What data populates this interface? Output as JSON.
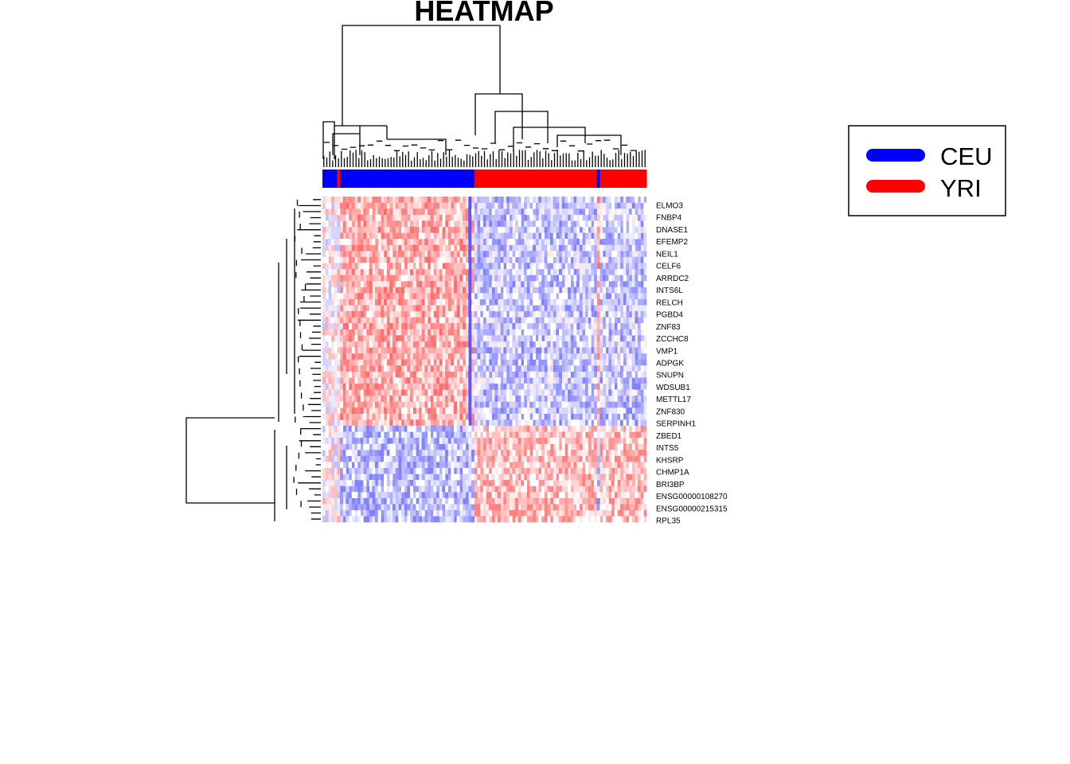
{
  "chart_data": {
    "type": "heatmap",
    "title": "HEATMAP",
    "color_scale": {
      "low": "#0000FF",
      "mid": "#FFFFFF",
      "high": "#FF0000"
    },
    "group_colors": {
      "CEU": "#0000FF",
      "YRI": "#FF0000"
    },
    "legend": {
      "position": "right",
      "entries": [
        {
          "label": "CEU",
          "color": "#0000FF"
        },
        {
          "label": "YRI",
          "color": "#FF0000"
        }
      ]
    },
    "column_groups": [
      {
        "group": "CEU",
        "count": 5
      },
      {
        "group": "YRI",
        "count": 1
      },
      {
        "group": "CEU",
        "count": 46
      },
      {
        "group": "YRI",
        "count": 42
      },
      {
        "group": "CEU",
        "count": 1
      },
      {
        "group": "YRI",
        "count": 16
      }
    ],
    "row_labels": [
      "ELMO3",
      "FNBP4",
      "DNASE1",
      "EFEMP2",
      "NEIL1",
      "CELF6",
      "ARRDC2",
      "INTS6L",
      "RELCH",
      "PGBD4",
      "ZNF83",
      "ZCCHC8",
      "VMP1",
      "ADPGK",
      "SNUPN",
      "WDSUB1",
      "METTL17",
      "ZNF830",
      "SERPINH1",
      "ZBED1",
      "INTS5",
      "KHSRP",
      "CHMP1A",
      "BRI3BP",
      "ENSG00000108270",
      "ENSG00000215315",
      "RPL35"
    ],
    "n_rows": 54,
    "row_clusters": [
      {
        "name": "up_in_CEU",
        "rows": 38
      },
      {
        "name": "up_in_YRI",
        "rows": 16
      }
    ],
    "dendrograms": {
      "columns": true,
      "rows": true
    }
  }
}
